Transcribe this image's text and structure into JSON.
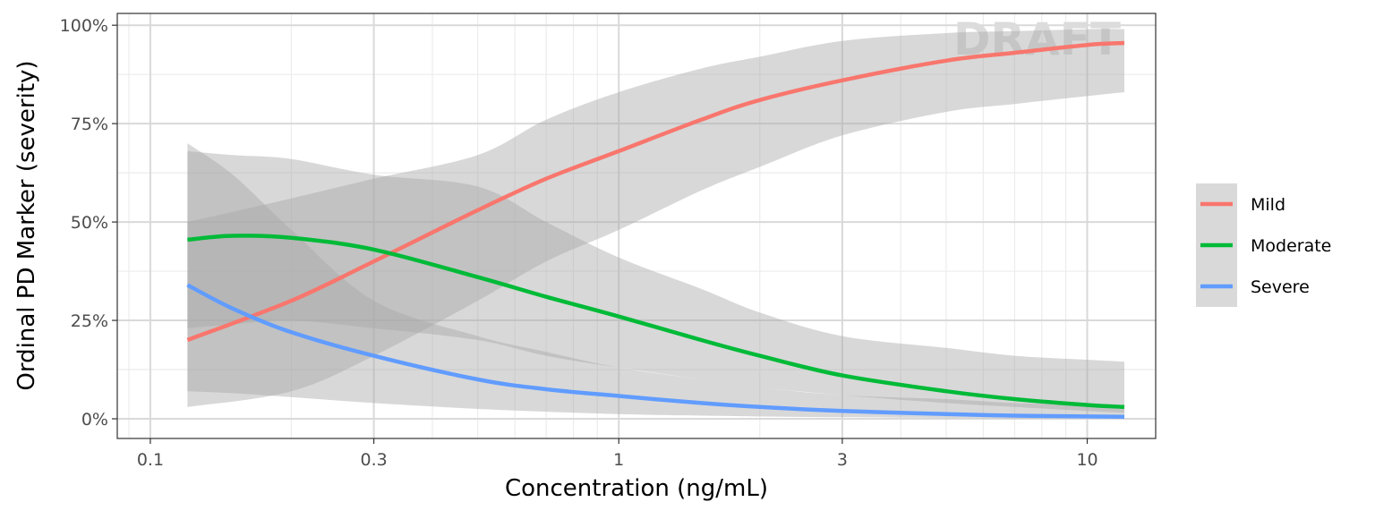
{
  "chart_data": {
    "type": "line",
    "title": "",
    "xlabel": "Concentration (ng/mL)",
    "ylabel": "Ordinal PD Marker (severity)",
    "x_scale": "log10",
    "xlim": [
      0.085,
      14
    ],
    "ylim": [
      -0.05,
      1.03
    ],
    "x_ticks": [
      {
        "value": 0.1,
        "label": "0.1"
      },
      {
        "value": 0.3,
        "label": "0.3"
      },
      {
        "value": 1,
        "label": "1"
      },
      {
        "value": 3,
        "label": "3"
      },
      {
        "value": 10,
        "label": "10"
      }
    ],
    "y_ticks": [
      {
        "value": 0,
        "label": "0%"
      },
      {
        "value": 0.25,
        "label": "25%"
      },
      {
        "value": 0.5,
        "label": "50%"
      },
      {
        "value": 0.75,
        "label": "75%"
      },
      {
        "value": 1,
        "label": "100%"
      }
    ],
    "grid": true,
    "legend_position": "right",
    "watermark": "DRAFT",
    "colors": {
      "band": "#a9a9a9",
      "panel_border": "#333333",
      "grid_major": "#d9d9d9",
      "grid_minor": "#ececec",
      "legend_key_bg": "#d9d9d9"
    },
    "series": [
      {
        "name": "Mild",
        "color": "#F8766D",
        "x": [
          0.12,
          0.2,
          0.3,
          0.5,
          0.7,
          1,
          1.5,
          2,
          3,
          5,
          7,
          10,
          12
        ],
        "y": [
          0.2,
          0.3,
          0.4,
          0.53,
          0.61,
          0.68,
          0.76,
          0.81,
          0.86,
          0.91,
          0.93,
          0.95,
          0.955
        ],
        "lower": [
          0.03,
          0.07,
          0.16,
          0.3,
          0.4,
          0.48,
          0.58,
          0.64,
          0.72,
          0.78,
          0.8,
          0.82,
          0.83
        ],
        "upper": [
          0.5,
          0.56,
          0.61,
          0.67,
          0.76,
          0.83,
          0.89,
          0.92,
          0.96,
          0.98,
          0.985,
          0.99,
          0.99
        ]
      },
      {
        "name": "Moderate",
        "color": "#00BA38",
        "x": [
          0.12,
          0.15,
          0.2,
          0.3,
          0.5,
          0.7,
          1,
          1.5,
          2,
          3,
          5,
          7,
          10,
          12
        ],
        "y": [
          0.455,
          0.465,
          0.46,
          0.43,
          0.36,
          0.31,
          0.26,
          0.2,
          0.16,
          0.11,
          0.07,
          0.05,
          0.035,
          0.03
        ],
        "lower": [
          0.23,
          0.24,
          0.25,
          0.23,
          0.2,
          0.16,
          0.13,
          0.1,
          0.08,
          0.06,
          0.04,
          0.03,
          0.02,
          0.015
        ],
        "upper": [
          0.68,
          0.67,
          0.66,
          0.62,
          0.59,
          0.5,
          0.41,
          0.33,
          0.27,
          0.21,
          0.18,
          0.16,
          0.15,
          0.145
        ]
      },
      {
        "name": "Severe",
        "color": "#619CFF",
        "x": [
          0.12,
          0.15,
          0.2,
          0.3,
          0.5,
          0.7,
          1,
          1.5,
          2,
          3,
          5,
          7,
          10,
          12
        ],
        "y": [
          0.34,
          0.28,
          0.22,
          0.16,
          0.1,
          0.075,
          0.058,
          0.04,
          0.03,
          0.02,
          0.012,
          0.008,
          0.006,
          0.005
        ],
        "lower": [
          0.07,
          0.065,
          0.055,
          0.04,
          0.025,
          0.018,
          0.012,
          0.008,
          0.006,
          0.004,
          0.002,
          0.001,
          0.001,
          0.001
        ],
        "upper": [
          0.7,
          0.62,
          0.48,
          0.3,
          0.21,
          0.17,
          0.13,
          0.1,
          0.08,
          0.06,
          0.05,
          0.04,
          0.035,
          0.03
        ]
      }
    ]
  }
}
